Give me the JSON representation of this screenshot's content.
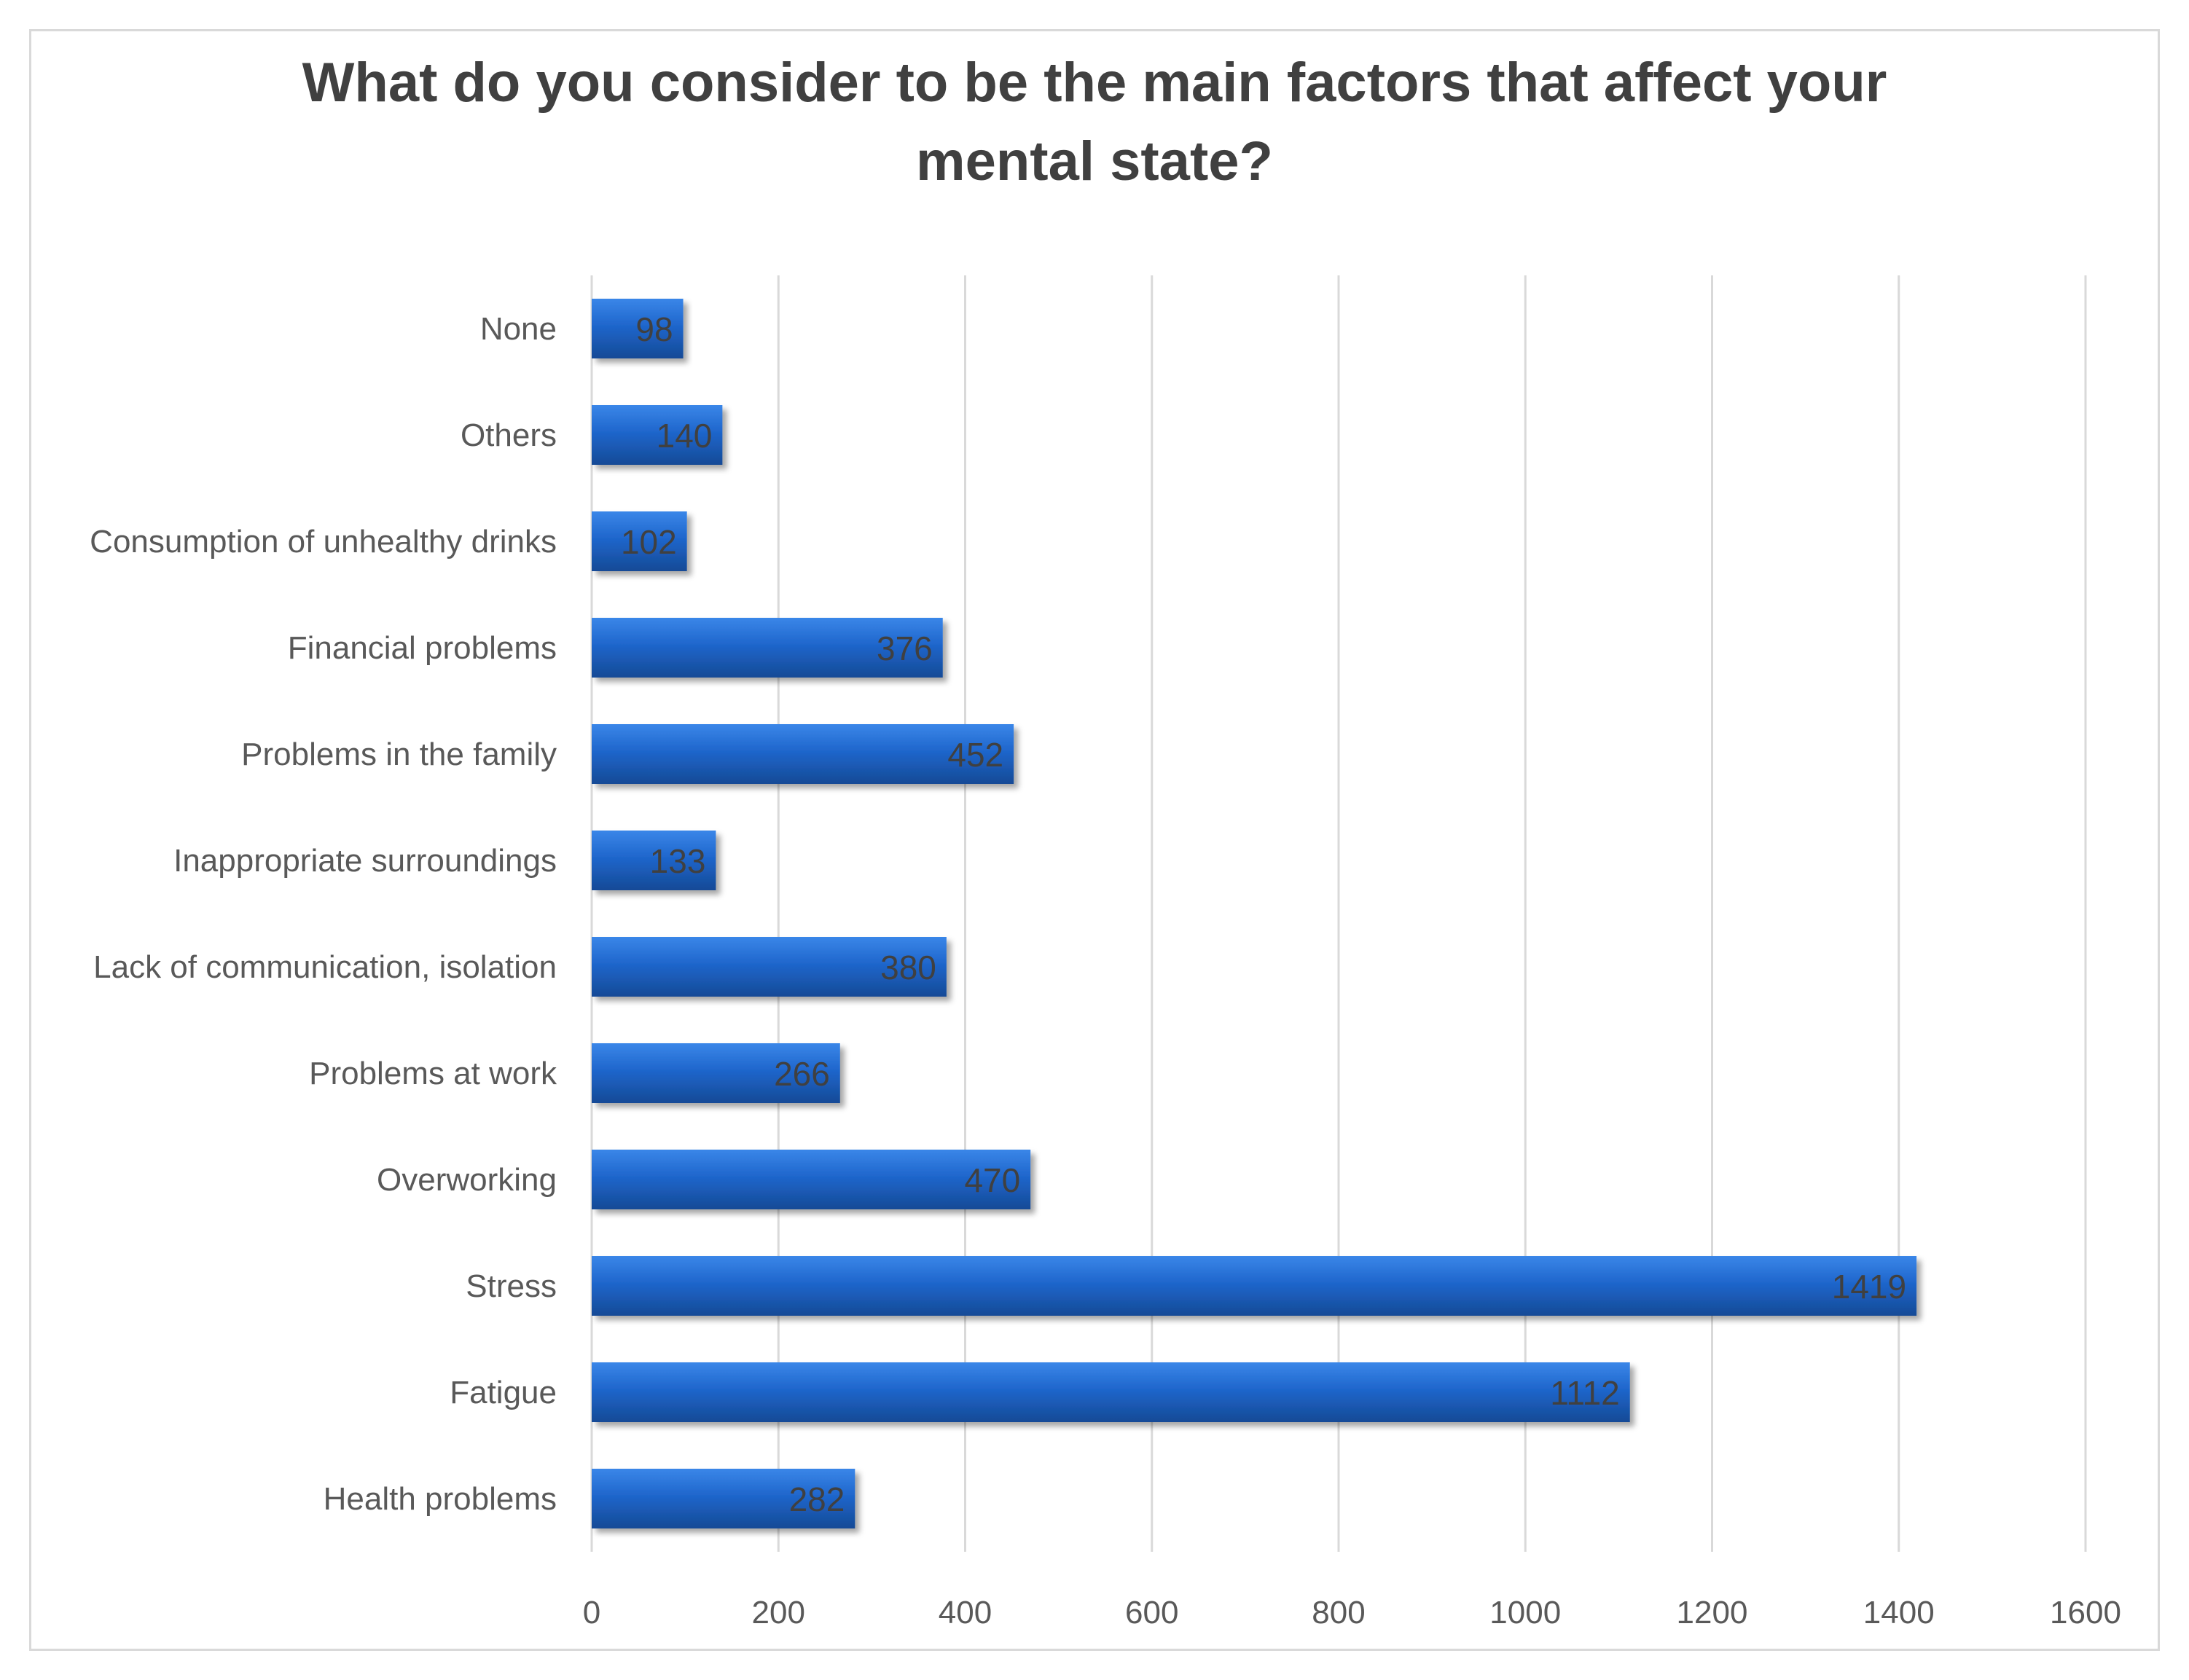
{
  "chart_data": {
    "type": "bar",
    "orientation": "horizontal",
    "title": "What do you consider to be the main factors that affect your mental state?",
    "title_lines": [
      "What do you consider to be the main factors that affect your",
      "mental state?"
    ],
    "categories": [
      "None",
      "Others",
      "Consumption of unhealthy drinks",
      "Financial problems",
      "Problems in the family",
      "Inappropriate surroundings",
      "Lack of communication, isolation",
      "Problems at work",
      "Overworking",
      "Stress",
      "Fatigue",
      "Health problems"
    ],
    "values": [
      98,
      140,
      102,
      376,
      452,
      133,
      380,
      266,
      470,
      1419,
      1112,
      282
    ],
    "xlim": [
      0,
      1600
    ],
    "xticks": [
      0,
      200,
      400,
      600,
      800,
      1000,
      1200,
      1400,
      1600
    ],
    "xlabel": "",
    "ylabel": "",
    "grid": "vertical",
    "legend": "none",
    "data_labels": true,
    "colors": {
      "bar": "#1f66cc",
      "bar_highlight": "#3a86e8",
      "bar_shadow": "#154a96",
      "grid": "#d9d9d9",
      "axis_text": "#595959",
      "data_label": "#404040",
      "title": "#404040"
    }
  }
}
